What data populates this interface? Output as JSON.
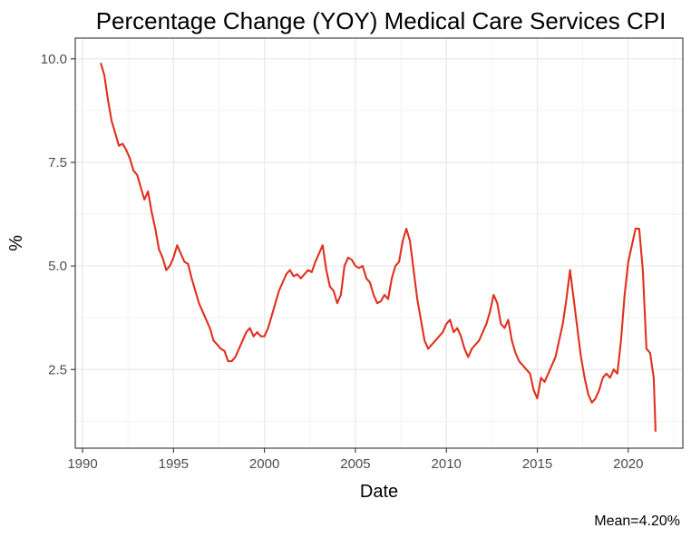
{
  "chart_data": {
    "type": "line",
    "title": "Percentage Change (YOY) Medical Care Services CPI",
    "xlabel": "Date",
    "ylabel": "%",
    "caption": "Mean=4.20%",
    "xlim": [
      1989.6,
      2023.0
    ],
    "ylim": [
      0.6,
      10.5
    ],
    "x_ticks": [
      1990,
      1995,
      2000,
      2005,
      2010,
      2015,
      2020
    ],
    "x_tick_labels": [
      "1990",
      "1995",
      "2000",
      "2005",
      "2010",
      "2015",
      "2020"
    ],
    "y_ticks": [
      2.5,
      5.0,
      7.5,
      10.0
    ],
    "y_tick_labels": [
      "2.5",
      "5.0",
      "7.5",
      "10.0"
    ],
    "grid": true,
    "series": [
      {
        "color": "#e0301e",
        "points": [
          [
            1991.0,
            9.9
          ],
          [
            1991.2,
            9.6
          ],
          [
            1991.4,
            9.0
          ],
          [
            1991.6,
            8.5
          ],
          [
            1991.8,
            8.2
          ],
          [
            1992.0,
            7.9
          ],
          [
            1992.2,
            7.95
          ],
          [
            1992.4,
            7.8
          ],
          [
            1992.6,
            7.6
          ],
          [
            1992.8,
            7.3
          ],
          [
            1993.0,
            7.2
          ],
          [
            1993.2,
            6.9
          ],
          [
            1993.4,
            6.6
          ],
          [
            1993.6,
            6.8
          ],
          [
            1993.8,
            6.3
          ],
          [
            1994.0,
            5.9
          ],
          [
            1994.2,
            5.4
          ],
          [
            1994.4,
            5.2
          ],
          [
            1994.6,
            4.9
          ],
          [
            1994.8,
            5.0
          ],
          [
            1995.0,
            5.2
          ],
          [
            1995.2,
            5.5
          ],
          [
            1995.4,
            5.3
          ],
          [
            1995.6,
            5.1
          ],
          [
            1995.8,
            5.05
          ],
          [
            1996.0,
            4.7
          ],
          [
            1996.2,
            4.4
          ],
          [
            1996.4,
            4.1
          ],
          [
            1996.6,
            3.9
          ],
          [
            1996.8,
            3.7
          ],
          [
            1997.0,
            3.5
          ],
          [
            1997.2,
            3.2
          ],
          [
            1997.4,
            3.1
          ],
          [
            1997.6,
            3.0
          ],
          [
            1997.8,
            2.95
          ],
          [
            1998.0,
            2.7
          ],
          [
            1998.2,
            2.7
          ],
          [
            1998.4,
            2.8
          ],
          [
            1998.6,
            3.0
          ],
          [
            1998.8,
            3.2
          ],
          [
            1999.0,
            3.4
          ],
          [
            1999.2,
            3.5
          ],
          [
            1999.4,
            3.3
          ],
          [
            1999.6,
            3.4
          ],
          [
            1999.8,
            3.3
          ],
          [
            2000.0,
            3.3
          ],
          [
            2000.2,
            3.5
          ],
          [
            2000.4,
            3.8
          ],
          [
            2000.6,
            4.1
          ],
          [
            2000.8,
            4.4
          ],
          [
            2001.0,
            4.6
          ],
          [
            2001.2,
            4.8
          ],
          [
            2001.4,
            4.9
          ],
          [
            2001.6,
            4.75
          ],
          [
            2001.8,
            4.8
          ],
          [
            2002.0,
            4.7
          ],
          [
            2002.2,
            4.8
          ],
          [
            2002.4,
            4.9
          ],
          [
            2002.6,
            4.85
          ],
          [
            2002.8,
            5.1
          ],
          [
            2003.0,
            5.3
          ],
          [
            2003.2,
            5.5
          ],
          [
            2003.4,
            4.9
          ],
          [
            2003.6,
            4.5
          ],
          [
            2003.8,
            4.4
          ],
          [
            2004.0,
            4.1
          ],
          [
            2004.2,
            4.3
          ],
          [
            2004.4,
            5.0
          ],
          [
            2004.6,
            5.2
          ],
          [
            2004.8,
            5.15
          ],
          [
            2005.0,
            5.0
          ],
          [
            2005.2,
            4.95
          ],
          [
            2005.4,
            5.0
          ],
          [
            2005.6,
            4.7
          ],
          [
            2005.8,
            4.6
          ],
          [
            2006.0,
            4.3
          ],
          [
            2006.2,
            4.1
          ],
          [
            2006.4,
            4.15
          ],
          [
            2006.6,
            4.3
          ],
          [
            2006.8,
            4.2
          ],
          [
            2007.0,
            4.7
          ],
          [
            2007.2,
            5.0
          ],
          [
            2007.4,
            5.1
          ],
          [
            2007.6,
            5.6
          ],
          [
            2007.8,
            5.9
          ],
          [
            2008.0,
            5.6
          ],
          [
            2008.2,
            4.9
          ],
          [
            2008.4,
            4.2
          ],
          [
            2008.6,
            3.7
          ],
          [
            2008.8,
            3.2
          ],
          [
            2009.0,
            3.0
          ],
          [
            2009.2,
            3.1
          ],
          [
            2009.4,
            3.2
          ],
          [
            2009.6,
            3.3
          ],
          [
            2009.8,
            3.4
          ],
          [
            2010.0,
            3.6
          ],
          [
            2010.2,
            3.7
          ],
          [
            2010.4,
            3.4
          ],
          [
            2010.6,
            3.5
          ],
          [
            2010.8,
            3.3
          ],
          [
            2011.0,
            3.0
          ],
          [
            2011.2,
            2.8
          ],
          [
            2011.4,
            3.0
          ],
          [
            2011.6,
            3.1
          ],
          [
            2011.8,
            3.2
          ],
          [
            2012.0,
            3.4
          ],
          [
            2012.2,
            3.6
          ],
          [
            2012.4,
            3.9
          ],
          [
            2012.6,
            4.3
          ],
          [
            2012.8,
            4.1
          ],
          [
            2013.0,
            3.6
          ],
          [
            2013.2,
            3.5
          ],
          [
            2013.4,
            3.7
          ],
          [
            2013.6,
            3.2
          ],
          [
            2013.8,
            2.9
          ],
          [
            2014.0,
            2.7
          ],
          [
            2014.2,
            2.6
          ],
          [
            2014.4,
            2.5
          ],
          [
            2014.6,
            2.4
          ],
          [
            2014.8,
            2.0
          ],
          [
            2015.0,
            1.8
          ],
          [
            2015.2,
            2.3
          ],
          [
            2015.4,
            2.2
          ],
          [
            2015.6,
            2.4
          ],
          [
            2015.8,
            2.6
          ],
          [
            2016.0,
            2.8
          ],
          [
            2016.2,
            3.2
          ],
          [
            2016.4,
            3.6
          ],
          [
            2016.6,
            4.2
          ],
          [
            2016.8,
            4.9
          ],
          [
            2017.0,
            4.2
          ],
          [
            2017.2,
            3.5
          ],
          [
            2017.4,
            2.8
          ],
          [
            2017.6,
            2.3
          ],
          [
            2017.8,
            1.9
          ],
          [
            2018.0,
            1.7
          ],
          [
            2018.2,
            1.8
          ],
          [
            2018.4,
            2.0
          ],
          [
            2018.6,
            2.3
          ],
          [
            2018.8,
            2.4
          ],
          [
            2019.0,
            2.3
          ],
          [
            2019.2,
            2.5
          ],
          [
            2019.4,
            2.4
          ],
          [
            2019.6,
            3.2
          ],
          [
            2019.8,
            4.3
          ],
          [
            2020.0,
            5.1
          ],
          [
            2020.2,
            5.5
          ],
          [
            2020.4,
            5.9
          ],
          [
            2020.6,
            5.9
          ],
          [
            2020.8,
            4.9
          ],
          [
            2021.0,
            3.0
          ],
          [
            2021.2,
            2.9
          ],
          [
            2021.4,
            2.3
          ],
          [
            2021.5,
            1.0
          ]
        ]
      }
    ]
  }
}
